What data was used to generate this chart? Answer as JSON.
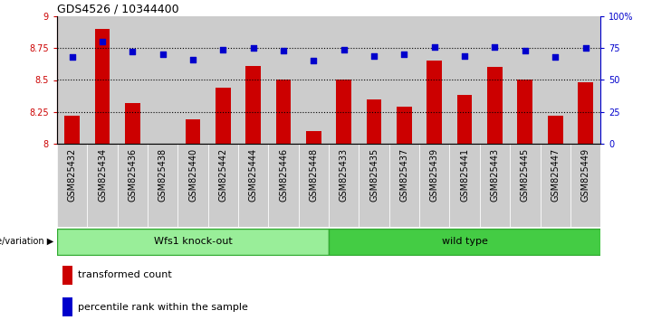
{
  "title": "GDS4526 / 10344400",
  "samples": [
    "GSM825432",
    "GSM825434",
    "GSM825436",
    "GSM825438",
    "GSM825440",
    "GSM825442",
    "GSM825444",
    "GSM825446",
    "GSM825448",
    "GSM825433",
    "GSM825435",
    "GSM825437",
    "GSM825439",
    "GSM825441",
    "GSM825443",
    "GSM825445",
    "GSM825447",
    "GSM825449"
  ],
  "bar_values": [
    8.22,
    8.9,
    8.32,
    8.0,
    8.19,
    8.44,
    8.61,
    8.5,
    8.1,
    8.5,
    8.35,
    8.29,
    8.65,
    8.38,
    8.6,
    8.5,
    8.22,
    8.48
  ],
  "percentile_values": [
    68,
    80,
    72,
    70,
    66,
    74,
    75,
    73,
    65,
    74,
    69,
    70,
    76,
    69,
    76,
    73,
    68,
    75
  ],
  "bar_color": "#cc0000",
  "percentile_color": "#0000cc",
  "ylim_left": [
    8.0,
    9.0
  ],
  "ylim_right": [
    0,
    100
  ],
  "yticks_left": [
    8.0,
    8.25,
    8.5,
    8.75,
    9.0
  ],
  "yticks_right": [
    0,
    25,
    50,
    75,
    100
  ],
  "ytick_labels_left": [
    "8",
    "8.25",
    "8.5",
    "8.75",
    "9"
  ],
  "ytick_labels_right": [
    "0",
    "25",
    "50",
    "75",
    "100%"
  ],
  "group1_label": "Wfs1 knock-out",
  "group2_label": "wild type",
  "group1_count": 9,
  "group2_count": 9,
  "group1_color": "#99ee99",
  "group2_color": "#44cc44",
  "legend_bar_label": "transformed count",
  "legend_dot_label": "percentile rank within the sample",
  "genotype_label": "genotype/variation",
  "tick_bg_color": "#cccccc",
  "grid_color": "#000000",
  "grid_ticks": [
    25,
    50,
    75
  ],
  "title_fontsize": 9,
  "label_fontsize": 8,
  "tick_fontsize": 7
}
